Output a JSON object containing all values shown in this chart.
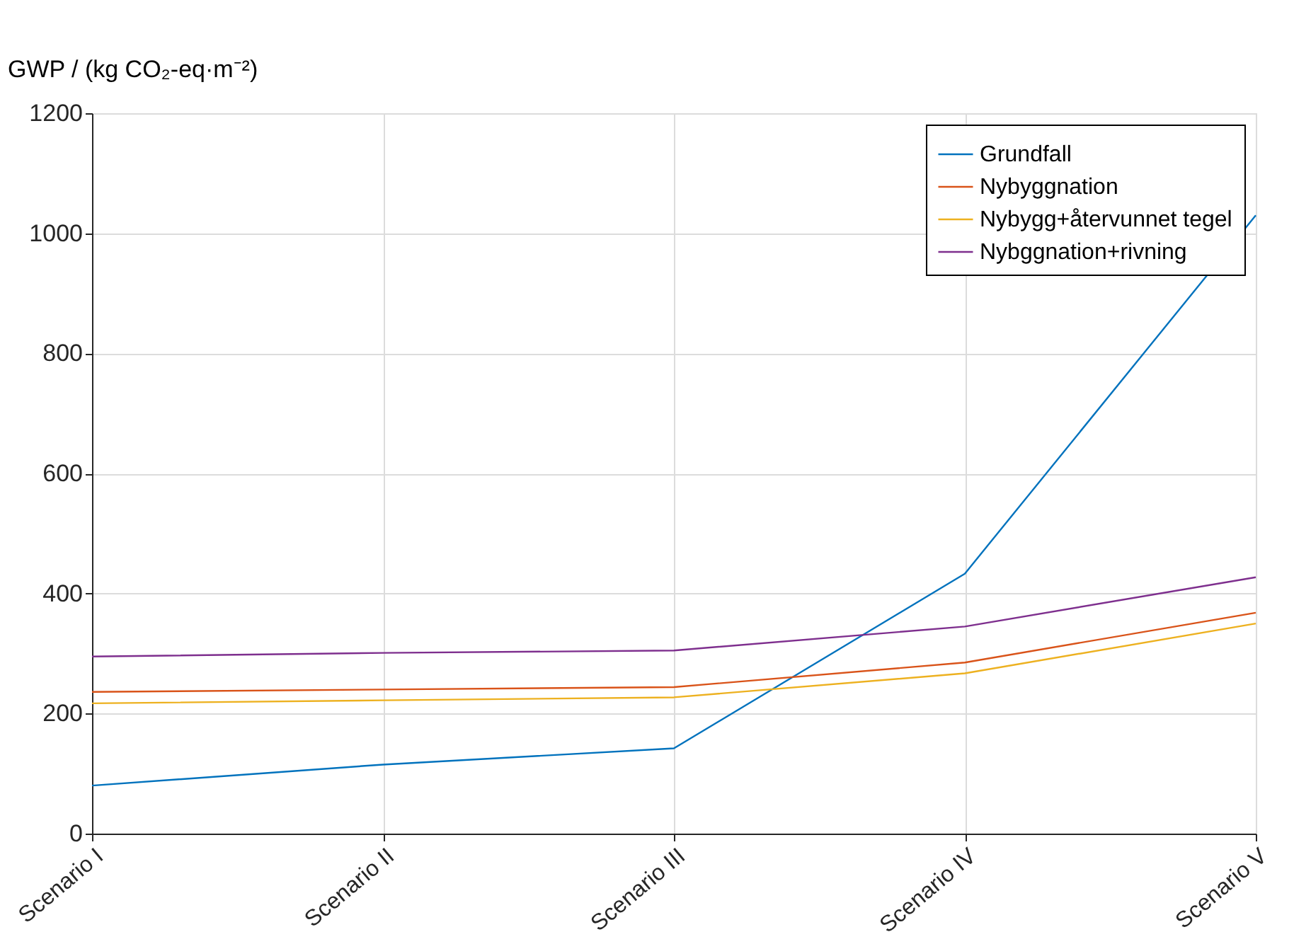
{
  "chart_data": {
    "type": "line",
    "ylabel": "GWP / (kg CO₂-eq·m⁻²)",
    "categories": [
      "Scenario I",
      "Scenario II",
      "Scenario III",
      "Scenario IV",
      "Scenario V"
    ],
    "series": [
      {
        "name": "Grundfall",
        "color": "#0072bd",
        "values": [
          80,
          115,
          142,
          433,
          1030
        ]
      },
      {
        "name": "Nybyggnation",
        "color": "#d95319",
        "values": [
          236,
          240,
          244,
          285,
          368
        ]
      },
      {
        "name": "Nybygg+återvunnet tegel",
        "color": "#edb120",
        "values": [
          217,
          222,
          227,
          267,
          350
        ]
      },
      {
        "name": "Nybggnation+rivning",
        "color": "#7e2f8e",
        "values": [
          295,
          301,
          305,
          345,
          427
        ]
      }
    ],
    "ylim": [
      0,
      1200
    ],
    "yticks": [
      0,
      200,
      400,
      600,
      800,
      1000,
      1200
    ],
    "grid": true,
    "legend": "top right",
    "marker": "none",
    "line_style": "solid"
  }
}
